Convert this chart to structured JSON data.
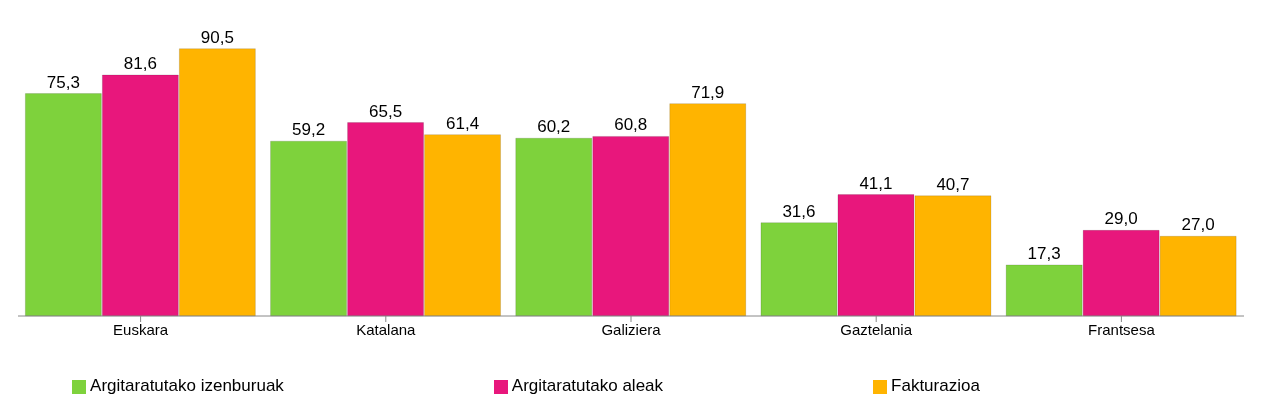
{
  "chart_data": {
    "type": "bar",
    "categories": [
      "Euskara",
      "Katalana",
      "Galiziera",
      "Gaztelania",
      "Frantsesa"
    ],
    "series": [
      {
        "name": "Argitaratutako izenburuak",
        "color": "#7ed23c",
        "values": [
          75.3,
          59.2,
          60.2,
          31.6,
          17.3
        ],
        "value_labels": [
          "75,3",
          "59,2",
          "60,2",
          "31,6",
          "17,3"
        ]
      },
      {
        "name": "Argitaratutako aleak",
        "color": "#e8177c",
        "values": [
          81.6,
          65.5,
          60.8,
          41.1,
          29
        ],
        "value_labels": [
          "81,6",
          "65,5",
          "60,8",
          "41,1",
          "29,0"
        ]
      },
      {
        "name": "Fakturazioa",
        "color": "#ffb400",
        "values": [
          90.5,
          61.4,
          71.9,
          40.7,
          27
        ],
        "value_labels": [
          "90,5",
          "61,4",
          "71,9",
          "40,7",
          "27,0"
        ]
      }
    ],
    "legend": "bottom",
    "grid": false
  }
}
